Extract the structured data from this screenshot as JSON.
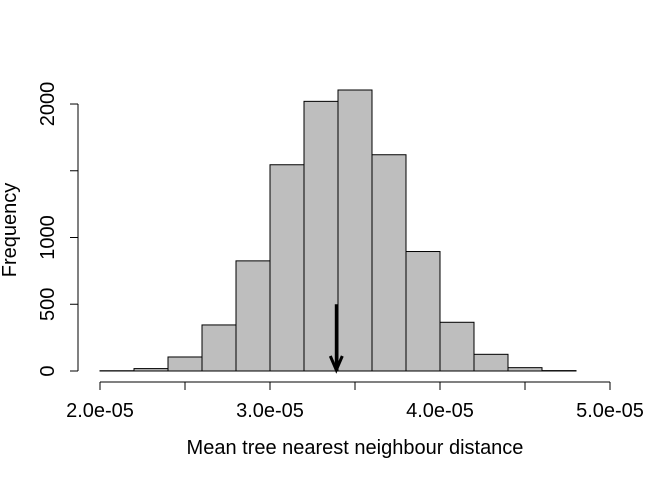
{
  "chart_data": {
    "type": "bar",
    "subtype": "histogram",
    "title": "",
    "xlabel": "Mean tree nearest neighbour distance",
    "ylabel": "Frequency",
    "bins": [
      {
        "from": 2e-05,
        "to": 2.2e-05,
        "count": 2
      },
      {
        "from": 2.2e-05,
        "to": 2.4e-05,
        "count": 18
      },
      {
        "from": 2.4e-05,
        "to": 2.6e-05,
        "count": 105
      },
      {
        "from": 2.6e-05,
        "to": 2.8e-05,
        "count": 345
      },
      {
        "from": 2.8e-05,
        "to": 3e-05,
        "count": 825
      },
      {
        "from": 3e-05,
        "to": 3.2e-05,
        "count": 1545
      },
      {
        "from": 3.2e-05,
        "to": 3.4e-05,
        "count": 2020
      },
      {
        "from": 3.4e-05,
        "to": 3.6e-05,
        "count": 2105
      },
      {
        "from": 3.6e-05,
        "to": 3.8e-05,
        "count": 1620
      },
      {
        "from": 3.8e-05,
        "to": 4e-05,
        "count": 895
      },
      {
        "from": 4e-05,
        "to": 4.2e-05,
        "count": 365
      },
      {
        "from": 4.2e-05,
        "to": 4.4e-05,
        "count": 125
      },
      {
        "from": 4.4e-05,
        "to": 4.6e-05,
        "count": 25
      },
      {
        "from": 4.6e-05,
        "to": 4.8e-05,
        "count": 3
      },
      {
        "from": 4.8e-05,
        "to": 5e-05,
        "count": 0
      }
    ],
    "xlim": [
      2e-05,
      5e-05
    ],
    "ylim": [
      0,
      2105
    ],
    "x_ticks": [
      2e-05,
      2.5e-05,
      3e-05,
      3.5e-05,
      4e-05,
      4.5e-05,
      5e-05
    ],
    "x_tick_labels": [
      "2.0e-05",
      "",
      "3.0e-05",
      "",
      "4.0e-05",
      "",
      "5.0e-05"
    ],
    "y_ticks": [
      0,
      500,
      1000,
      1500,
      2000
    ],
    "y_tick_labels": [
      "0",
      "500",
      "1000",
      "",
      "2000"
    ],
    "observed_arrow": {
      "x": 3.39e-05,
      "y_from": 500,
      "y_to": 0
    },
    "bar_fill": "#bebebe",
    "bar_stroke": "#000000",
    "grid": false,
    "legend": "none"
  }
}
